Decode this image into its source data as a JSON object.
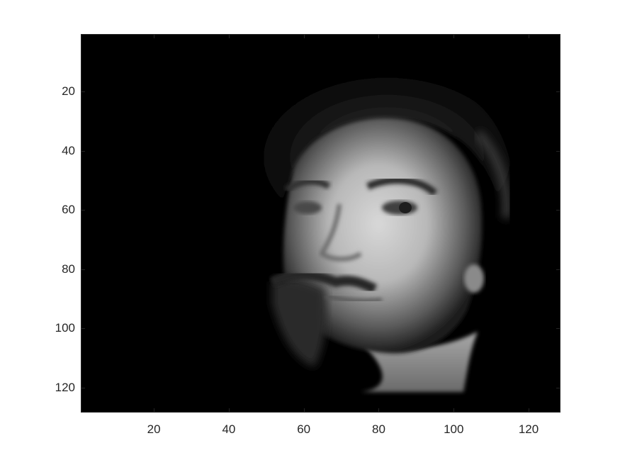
{
  "figure": {
    "image_description_name": "grayscale-face-image",
    "x_axis": {
      "min": 0.5,
      "max": 128.5,
      "ticks": [
        "20",
        "40",
        "60",
        "80",
        "100",
        "120"
      ],
      "tick_values": [
        20,
        40,
        60,
        80,
        100,
        120
      ]
    },
    "y_axis": {
      "min": 0.5,
      "max": 128.5,
      "reversed": true,
      "ticks": [
        "20",
        "40",
        "60",
        "80",
        "100",
        "120"
      ],
      "tick_values": [
        20,
        40,
        60,
        80,
        100,
        120
      ]
    },
    "colormap": "gray",
    "colors": {
      "background": "#ffffff",
      "axes_color": "#262626",
      "image_bg": "#000000"
    }
  }
}
